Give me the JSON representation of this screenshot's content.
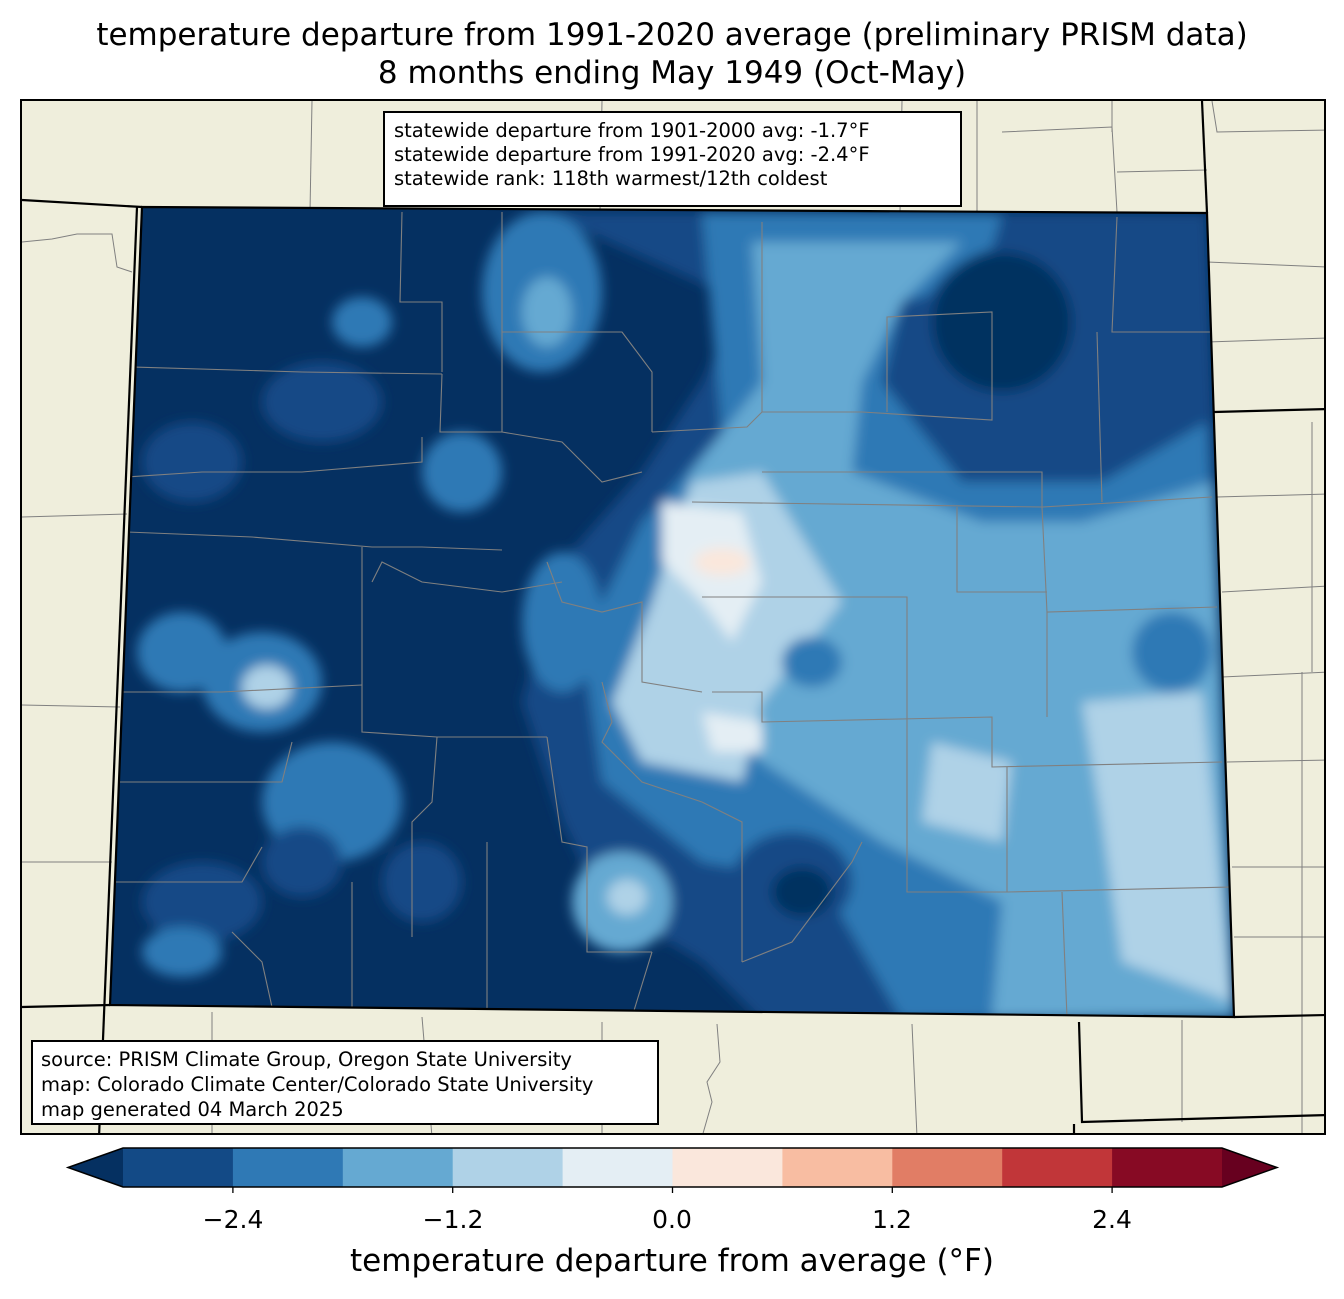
{
  "title": {
    "line1": "temperature departure from 1991-2020 average (preliminary PRISM data)",
    "line2": "8 months ending May 1949 (Oct-May)"
  },
  "stats": {
    "line1": "statewide departure from 1901-2000 avg: -1.7°F",
    "line2": "statewide departure from 1991-2020 avg: -2.4°F",
    "line3": "statewide rank: 118th warmest/12th coldest"
  },
  "source": {
    "line1": "source: PRISM Climate Group, Oregon State University",
    "line2": "map: Colorado Climate Center/Colorado State University",
    "line3": "map generated 04 March 2025"
  },
  "colorbar": {
    "label": "temperature departure from average (°F)",
    "ticks": [
      "−2.4",
      "−1.2",
      "0.0",
      "1.2",
      "2.4"
    ],
    "levels": [
      -3.0,
      -2.4,
      -1.8,
      -1.2,
      -0.6,
      0.0,
      0.6,
      1.2,
      1.8,
      2.4,
      3.0
    ],
    "colors": [
      "#053061",
      "#134a86",
      "#2f79b5",
      "#65a9d2",
      "#afd2e7",
      "#e4eef4",
      "#fae7dc",
      "#f8bda2",
      "#e17d65",
      "#c13639",
      "#870a24",
      "#67001f"
    ]
  },
  "map": {
    "region": "Colorado",
    "land_color": "#efeedc"
  }
}
